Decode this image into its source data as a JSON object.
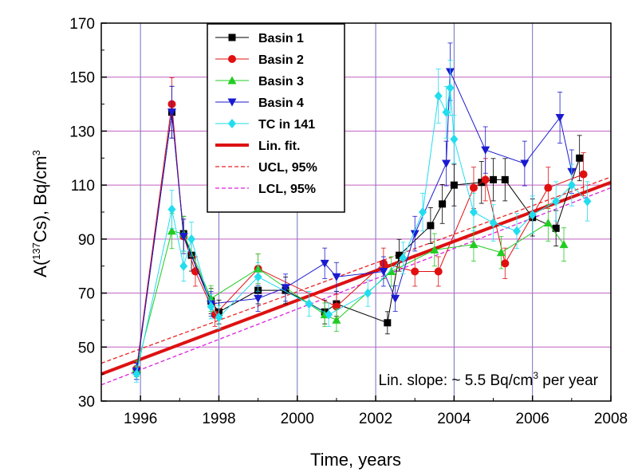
{
  "chart_data": {
    "type": "scatter",
    "xlabel": "Time, years",
    "ylabel_parts": [
      "A(",
      "137",
      "Cs),  Bq/cm",
      "3"
    ],
    "xlim": [
      1995,
      2008
    ],
    "ylim": [
      30,
      170
    ],
    "xticks": [
      1996,
      1998,
      2000,
      2002,
      2004,
      2006,
      2008
    ],
    "yticks": [
      30,
      50,
      70,
      90,
      110,
      130,
      150,
      170
    ],
    "grid": true,
    "legend_position": "top-left",
    "annotation_parts": [
      "Lin. slope: ~ 5.5 Bq/cm",
      "3",
      " per year"
    ],
    "colors": {
      "basin1": "#000000",
      "basin2": "#e01010",
      "basin3": "#22cc22",
      "basin4": "#1a1ad0",
      "tc": "#22ddee",
      "fit": "#dd1111",
      "ucl": "#ee2222",
      "lcl": "#dd22dd",
      "grid_v": "#7070c0",
      "grid_h": "#c060c0"
    },
    "series": [
      {
        "name": "Basin 1",
        "marker": "square",
        "color_key": "basin1",
        "x": [
          1995.9,
          1996.8,
          1997.1,
          1997.3,
          1997.8,
          1998.0,
          1999.0,
          1999.7,
          2000.7,
          2001.0,
          2002.3,
          2002.6,
          2003.4,
          2003.7,
          2004.0,
          2004.7,
          2005.0,
          2005.3,
          2006.0,
          2006.6,
          2007.2
        ],
        "y": [
          41,
          137,
          92,
          84,
          67,
          63,
          71,
          71,
          63,
          66,
          59,
          84,
          95,
          103,
          110,
          111,
          112,
          112,
          98,
          94,
          120
        ]
      },
      {
        "name": "Basin 2",
        "marker": "circle",
        "color_key": "basin2",
        "x": [
          1995.9,
          1996.8,
          1997.1,
          1997.4,
          1997.9,
          1999.0,
          2001.0,
          2002.2,
          2003.0,
          2003.6,
          2004.5,
          2004.8,
          2005.3,
          2006.4,
          2007.3
        ],
        "y": [
          42,
          140,
          91,
          78,
          62,
          79,
          65,
          81,
          78,
          78,
          109,
          112,
          81,
          109,
          114
        ]
      },
      {
        "name": "Basin 3",
        "marker": "triangle-up",
        "color_key": "basin3",
        "x": [
          1995.9,
          1996.8,
          1997.1,
          1997.8,
          1999.0,
          2000.7,
          2001.0,
          2002.4,
          2003.5,
          2004.5,
          2005.2,
          2006.4,
          2006.8
        ],
        "y": [
          42,
          93,
          92,
          68,
          79,
          62,
          60,
          78,
          86,
          88,
          85,
          96,
          88
        ]
      },
      {
        "name": "Basin 4",
        "marker": "triangle-down",
        "color_key": "basin4",
        "x": [
          1995.9,
          1996.8,
          1997.1,
          1997.8,
          1999.0,
          1999.7,
          2000.7,
          2001.0,
          2002.2,
          2002.5,
          2003.0,
          2003.8,
          2003.9,
          2004.8,
          2005.8,
          2006.7,
          2007.0
        ],
        "y": [
          41,
          137,
          91,
          66,
          68,
          72,
          81,
          76,
          78,
          68,
          92,
          118,
          152,
          123,
          118,
          135,
          115
        ]
      },
      {
        "name": "TC in 141",
        "marker": "diamond",
        "color_key": "tc",
        "x": [
          1995.9,
          1996.8,
          1997.1,
          1997.3,
          1997.8,
          1998.0,
          1999.0,
          2000.3,
          2000.8,
          2001.8,
          2002.7,
          2003.2,
          2003.6,
          2003.8,
          2003.9,
          2004.0,
          2004.5,
          2005.0,
          2005.6,
          2006.0,
          2006.6,
          2007.0,
          2007.4
        ],
        "y": [
          40,
          101,
          80,
          90,
          65,
          61,
          76,
          66,
          62,
          70,
          83,
          100,
          143,
          137,
          146,
          127,
          100,
          96,
          93,
          99,
          104,
          110,
          104
        ]
      }
    ],
    "fit_lines": [
      {
        "name": "Lin. fit.",
        "color_key": "fit",
        "style": "solid",
        "x": [
          1995,
          2008
        ],
        "y": [
          40,
          111
        ]
      },
      {
        "name": "UCL, 95%",
        "color_key": "ucl",
        "style": "dashed",
        "x": [
          1995,
          2008
        ],
        "y": [
          44,
          113
        ]
      },
      {
        "name": "LCL, 95%",
        "color_key": "lcl",
        "style": "dashed",
        "x": [
          1995,
          2008
        ],
        "y": [
          36,
          109
        ]
      }
    ]
  }
}
